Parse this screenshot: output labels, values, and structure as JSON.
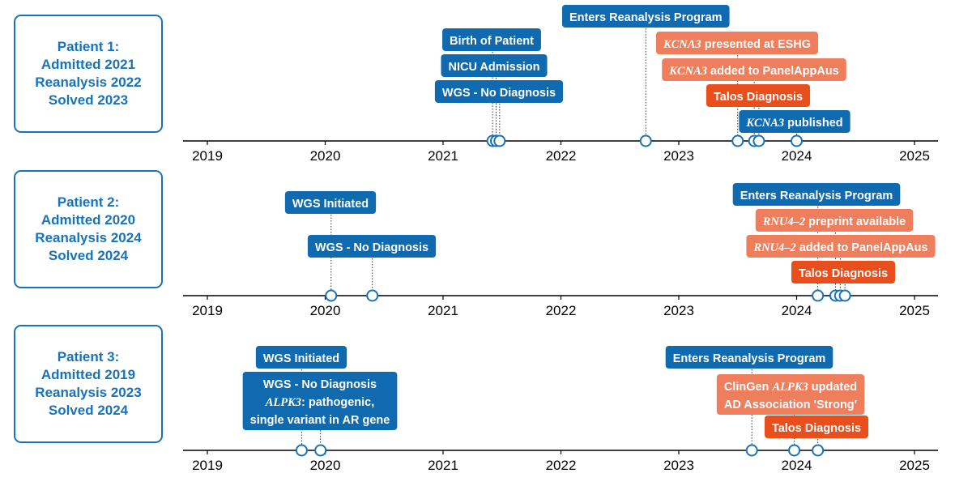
{
  "colors": {
    "blue": "#0f6aaf",
    "salmon": "#ef7e5c",
    "red": "#e84f1c",
    "outline": "#1a73b8",
    "axis": "#000000"
  },
  "chart_data": {
    "type": "timeline",
    "x_range": [
      2018.8,
      2025.2
    ],
    "ticks": [
      2019,
      2020,
      2021,
      2022,
      2023,
      2024,
      2025
    ],
    "panels": [
      {
        "box_lines": [
          "Patient 1:",
          "Admitted 2021",
          "Reanalysis 2022",
          "Solved 2023"
        ],
        "events": [
          {
            "date": 2021.42,
            "color": "blue",
            "parts": [
              {
                "text": "Birth of Patient"
              }
            ]
          },
          {
            "date": 2021.45,
            "color": "blue",
            "parts": [
              {
                "text": "NICU Admission"
              }
            ]
          },
          {
            "date": 2021.48,
            "color": "blue",
            "parts": [
              {
                "text": "WGS - No Diagnosis"
              }
            ]
          },
          {
            "date": 2022.72,
            "color": "blue",
            "parts": [
              {
                "text": "Enters Reanalysis Program"
              }
            ]
          },
          {
            "date": 2023.5,
            "color": "salmon",
            "parts": [
              {
                "text": "KCNA3",
                "gene": true
              },
              {
                "text": " presented at ESHG"
              }
            ]
          },
          {
            "date": 2023.64,
            "color": "salmon",
            "parts": [
              {
                "text": "KCNA3",
                "gene": true
              },
              {
                "text": " added to PanelAppAus"
              }
            ]
          },
          {
            "date": 2023.68,
            "color": "red",
            "parts": [
              {
                "text": "Talos Diagnosis"
              }
            ]
          },
          {
            "date": 2024.0,
            "color": "blue",
            "parts": [
              {
                "text": "KCNA3",
                "gene": true
              },
              {
                "text": " published"
              }
            ]
          }
        ]
      },
      {
        "box_lines": [
          "Patient 2:",
          "Admitted 2020",
          "Reanalysis 2024",
          "Solved 2024"
        ],
        "events": [
          {
            "date": 2020.05,
            "color": "blue",
            "parts": [
              {
                "text": "WGS Initiated"
              }
            ]
          },
          {
            "date": 2020.4,
            "color": "blue",
            "parts": [
              {
                "text": "WGS - No Diagnosis"
              }
            ]
          },
          {
            "date": 2024.18,
            "color": "blue",
            "parts": [
              {
                "text": "Enters Reanalysis Program"
              }
            ]
          },
          {
            "date": 2024.33,
            "color": "salmon",
            "parts": [
              {
                "text": "RNU4–2",
                "gene": true
              },
              {
                "text": " preprint available"
              }
            ]
          },
          {
            "date": 2024.37,
            "color": "salmon",
            "parts": [
              {
                "text": "RNU4–2",
                "gene": true
              },
              {
                "text": " added to PanelAppAus"
              }
            ]
          },
          {
            "date": 2024.41,
            "color": "red",
            "parts": [
              {
                "text": "Talos Diagnosis"
              }
            ]
          }
        ]
      },
      {
        "box_lines": [
          "Patient 3:",
          "Admitted 2019",
          "Reanalysis 2023",
          "Solved 2024"
        ],
        "events": [
          {
            "date": 2019.8,
            "color": "blue",
            "parts": [
              {
                "text": "WGS Initiated"
              }
            ]
          },
          {
            "date": 2019.96,
            "color": "blue",
            "lines": [
              [
                {
                  "text": "WGS - No Diagnosis"
                }
              ],
              [
                {
                  "text": "ALPK3",
                  "gene": true
                },
                {
                  "text": ": pathogenic,"
                }
              ],
              [
                {
                  "text": "single variant in AR gene"
                }
              ]
            ]
          },
          {
            "date": 2023.62,
            "color": "blue",
            "parts": [
              {
                "text": "Enters Reanalysis Program"
              }
            ]
          },
          {
            "date": 2023.98,
            "color": "salmon",
            "lines": [
              [
                {
                  "text": "ClinGen "
                },
                {
                  "text": "ALPK3",
                  "gene": true
                },
                {
                  "text": " updated"
                }
              ],
              [
                {
                  "text": "AD Association 'Strong'"
                }
              ]
            ]
          },
          {
            "date": 2024.18,
            "color": "red",
            "parts": [
              {
                "text": "Talos Diagnosis"
              }
            ]
          }
        ]
      }
    ]
  }
}
